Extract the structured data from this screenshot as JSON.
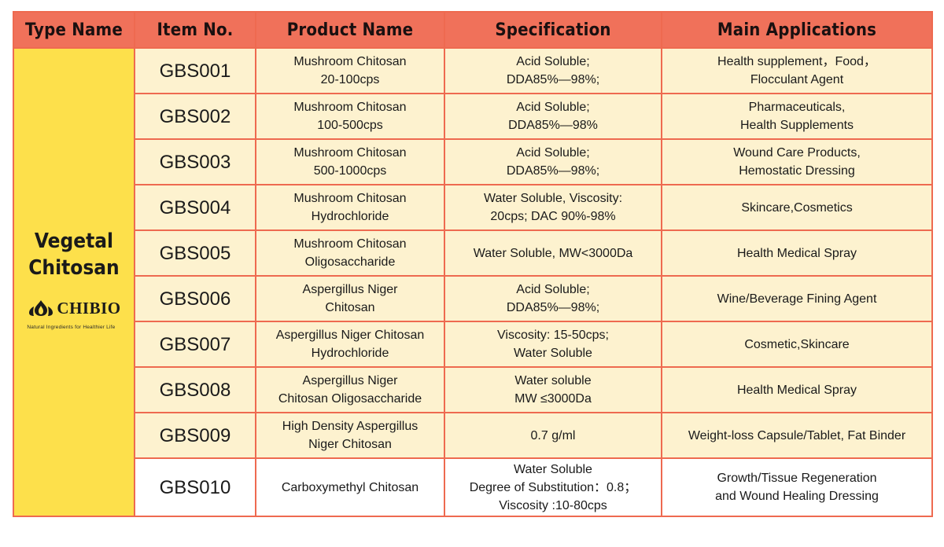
{
  "headers": [
    "Type Name",
    "Item No.",
    "Product Name",
    "Specification",
    "Main Applications"
  ],
  "type": {
    "lines": [
      "Vegetal",
      "Chitosan"
    ],
    "logo_text": "CHIBIO",
    "logo_tagline": "Natural Ingredients for Healthier Life",
    "logo_icon": "flame-leaf-icon"
  },
  "colors": {
    "header_bg": "#f0715a",
    "border": "#ee6a50",
    "type_bg": "#fde04b",
    "row_tint": "#fdf2cf"
  },
  "rows": [
    {
      "item": "GBS001",
      "product": [
        "Mushroom Chitosan",
        "20-100cps"
      ],
      "spec": [
        "Acid Soluble;",
        "DDA85%—98%;"
      ],
      "app": [
        "Health supplement，Food，",
        "Flocculant Agent"
      ]
    },
    {
      "item": "GBS002",
      "product": [
        "Mushroom Chitosan",
        "100-500cps"
      ],
      "spec": [
        "Acid Soluble;",
        "DDA85%—98%"
      ],
      "app": [
        "Pharmaceuticals,",
        "Health Supplements"
      ]
    },
    {
      "item": "GBS003",
      "product": [
        "Mushroom Chitosan",
        "500-1000cps"
      ],
      "spec": [
        "Acid Soluble;",
        "DDA85%—98%;"
      ],
      "app": [
        "Wound Care Products,",
        "Hemostatic Dressing"
      ]
    },
    {
      "item": "GBS004",
      "product": [
        "Mushroom Chitosan",
        "Hydrochloride"
      ],
      "spec": [
        "Water Soluble, Viscosity:",
        "20cps; DAC 90%-98%"
      ],
      "app": [
        "Skincare,Cosmetics"
      ]
    },
    {
      "item": "GBS005",
      "product": [
        "Mushroom Chitosan",
        "Oligosaccharide"
      ],
      "spec": [
        "Water Soluble, MW<3000Da"
      ],
      "app": [
        "Health Medical Spray"
      ]
    },
    {
      "item": "GBS006",
      "product": [
        "Aspergillus Niger",
        "Chitosan"
      ],
      "spec": [
        "Acid Soluble;",
        "DDA85%—98%;"
      ],
      "app": [
        "Wine/Beverage Fining Agent"
      ]
    },
    {
      "item": "GBS007",
      "product": [
        "Aspergillus Niger Chitosan",
        "Hydrochloride"
      ],
      "spec": [
        "Viscosity: 15-50cps;",
        "Water Soluble"
      ],
      "app": [
        "Cosmetic,Skincare"
      ]
    },
    {
      "item": "GBS008",
      "product": [
        "Aspergillus Niger",
        "Chitosan Oligosaccharide"
      ],
      "spec": [
        "Water soluble",
        "MW ≤3000Da"
      ],
      "app": [
        "Health Medical Spray"
      ]
    },
    {
      "item": "GBS009",
      "product": [
        "High Density Aspergillus",
        "Niger Chitosan"
      ],
      "spec": [
        "0.7 g/ml"
      ],
      "app": [
        "Weight-loss Capsule/Tablet, Fat Binder"
      ]
    },
    {
      "item": "GBS010",
      "product": [
        "Carboxymethyl Chitosan"
      ],
      "spec": [
        "Water Soluble",
        "Degree of Substitution：0.8；",
        "Viscosity :10-80cps"
      ],
      "app": [
        "Growth/Tissue Regeneration",
        "and Wound Healing Dressing"
      ]
    }
  ]
}
